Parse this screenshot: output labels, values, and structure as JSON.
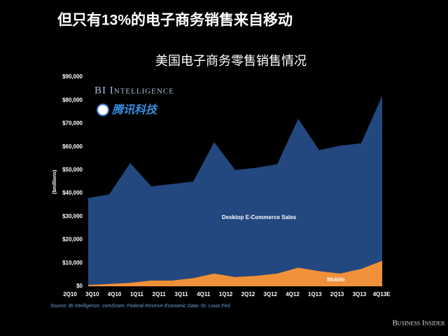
{
  "header": {
    "title": "但只有13%的电子商务销售来自移动"
  },
  "chart_data": {
    "type": "area",
    "stacked": true,
    "title": "美国电子商务零售销售情况",
    "ylabel": "($millions)",
    "categories": [
      "2Q10",
      "3Q10",
      "4Q10",
      "1Q11",
      "2Q11",
      "3Q11",
      "4Q11",
      "1Q12",
      "2Q12",
      "3Q12",
      "4Q12",
      "1Q13",
      "2Q13",
      "3Q13",
      "4Q13E"
    ],
    "series": [
      {
        "name": "Mobile",
        "color": "#f0913a",
        "values": [
          600,
          1000,
          1500,
          2500,
          2500,
          3500,
          5500,
          4000,
          4500,
          5500,
          8000,
          6500,
          5500,
          7500,
          11000
        ]
      },
      {
        "name": "Desktop E-Commerce Sales",
        "color": "#23487f",
        "values": [
          37400,
          38500,
          51500,
          40500,
          41500,
          41500,
          56500,
          46000,
          46500,
          47000,
          64000,
          52000,
          55000,
          54000,
          71000
        ]
      }
    ],
    "ylim": [
      0,
      90000
    ],
    "yticks": [
      {
        "value": 0,
        "label": "$0"
      },
      {
        "value": 10000,
        "label": "$10,000"
      },
      {
        "value": 20000,
        "label": "$20,000"
      },
      {
        "value": 30000,
        "label": "$30,000"
      },
      {
        "value": 40000,
        "label": "$40,000"
      },
      {
        "value": 50000,
        "label": "$50,000"
      },
      {
        "value": 60000,
        "label": "$60,000"
      },
      {
        "value": 70000,
        "label": "$70,000"
      },
      {
        "value": 80000,
        "label": "$80,000"
      },
      {
        "value": 90000,
        "label": "$90,000"
      }
    ],
    "grid": false,
    "watermarks": [
      "BI Intelligence",
      "腾讯科技"
    ],
    "source": "Source: BI Intelligence, comScore, Federal Reserve Economic Data--St. Louis Fed"
  },
  "footer": {
    "brand": "Business Insider"
  }
}
